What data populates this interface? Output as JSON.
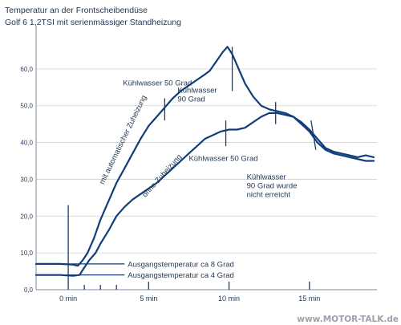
{
  "chart_data": {
    "type": "line",
    "title": "Temperatur an der Frontscheibendüse",
    "subtitle": "Golf 6 1,2TSI mit serienmässiger Standheizung",
    "xlim": [
      -2,
      19.2
    ],
    "ylim": [
      0,
      70
    ],
    "ytick_values": [
      0,
      10,
      20,
      30,
      40,
      50,
      60
    ],
    "ytick_labels": [
      "0,0",
      "10,0",
      "20,0",
      "30,0",
      "40,0",
      "50,0",
      "60,0"
    ],
    "xtick_values": [
      0,
      5,
      10,
      15
    ],
    "xtick_labels": [
      "0 min",
      "5 min",
      "10 min",
      "15 min"
    ],
    "minor_xticks": [
      1,
      2,
      3
    ],
    "grid": "horizontal",
    "series": [
      {
        "label": "mit automatischer Zuheizung",
        "x": [
          -2,
          -0.5,
          0.3,
          0.6,
          0.9,
          1.2,
          1.6,
          2.0,
          2.5,
          3.0,
          3.5,
          4.0,
          4.5,
          5.0,
          5.5,
          6.0,
          6.5,
          7.0,
          7.5,
          8.0,
          8.5,
          8.8,
          9.2,
          9.6,
          9.9,
          10.2,
          10.6,
          11.0,
          11.5,
          12.0,
          12.5,
          13.0,
          13.5,
          14.0,
          14.5,
          15.0,
          15.5,
          16.0,
          16.5,
          17.0,
          17.5,
          18.0,
          18.5,
          19.0
        ],
        "y": [
          7.0,
          7.0,
          6.8,
          6.5,
          8.0,
          10.0,
          14.0,
          19.0,
          24.0,
          29.0,
          33.0,
          37.0,
          41.0,
          44.5,
          47.0,
          49.5,
          52.0,
          54.0,
          55.5,
          57.0,
          58.5,
          59.5,
          62.0,
          64.5,
          66.0,
          64.0,
          60.0,
          56.0,
          52.5,
          50.0,
          49.0,
          48.5,
          48.0,
          47.0,
          45.5,
          43.5,
          41.0,
          38.5,
          37.5,
          37.0,
          36.5,
          36.0,
          36.5,
          36.0
        ]
      },
      {
        "label": "ohne Zuheizung",
        "x": [
          -2,
          -0.5,
          0.3,
          0.7,
          1.0,
          1.3,
          1.7,
          2.0,
          2.5,
          3.0,
          3.5,
          4.0,
          4.5,
          5.0,
          5.5,
          6.0,
          6.5,
          7.0,
          7.5,
          8.0,
          8.5,
          9.0,
          9.5,
          10.0,
          10.5,
          11.0,
          11.5,
          12.0,
          12.5,
          13.0,
          13.5,
          14.0,
          14.5,
          15.0,
          15.5,
          16.0,
          16.5,
          17.0,
          17.5,
          18.0,
          18.5,
          19.0
        ],
        "y": [
          4.0,
          4.0,
          3.8,
          4.0,
          6.0,
          8.0,
          10.0,
          12.5,
          16.0,
          20.0,
          22.5,
          24.5,
          26.0,
          27.5,
          29.0,
          31.0,
          33.0,
          35.0,
          37.0,
          39.0,
          41.0,
          42.0,
          43.0,
          43.5,
          43.5,
          44.0,
          45.5,
          47.0,
          48.0,
          48.0,
          47.5,
          47.0,
          45.0,
          43.0,
          40.0,
          38.0,
          37.0,
          36.5,
          36.0,
          35.5,
          35.0,
          35.0
        ]
      }
    ],
    "reference_lines": [
      {
        "label": "Ausgangstemperatur ca 8 Grad",
        "y": 7.0
      },
      {
        "label": "Ausgangstemperatur ca 4 Grad",
        "y": 4.0
      }
    ],
    "annotations": [
      {
        "lines": [
          "Kühlwasser 50 Grad"
        ]
      },
      {
        "lines": [
          "Kühlwasser",
          "90 Grad"
        ]
      },
      {
        "lines": [
          "mit automatischer Zuheizung"
        ]
      },
      {
        "lines": [
          "ohne Zuheizung"
        ]
      },
      {
        "lines": [
          "Kühlwasser 50 Grad"
        ]
      },
      {
        "lines": [
          "Kühlwasser",
          "90 Grad wurde",
          "nicht erreicht"
        ]
      }
    ],
    "watermark": "www.MOTOR-TALK.de"
  },
  "colors": {
    "line": "#123e78",
    "axis": "#7c8899",
    "grid": "#cdd2d8",
    "text": "#1f3550",
    "watermark": "#9aa3ad"
  }
}
